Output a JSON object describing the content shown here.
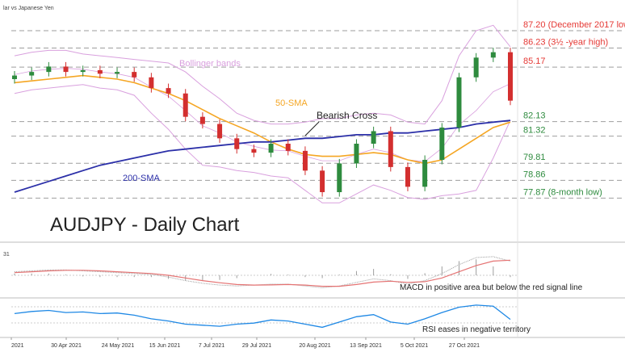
{
  "chart_data": {
    "type": "line",
    "header": "lar vs Japanese Yen",
    "title": "AUDJPY - Daily Chart",
    "main": {
      "ylim": [
        77.3,
        88.1
      ],
      "x": [
        "2021-04-13",
        "2021-04-20",
        "2021-04-27",
        "2021-05-04",
        "2021-05-11",
        "2021-05-18",
        "2021-05-25",
        "2021-06-01",
        "2021-06-08",
        "2021-06-15",
        "2021-06-22",
        "2021-06-29",
        "2021-07-06",
        "2021-07-13",
        "2021-07-20",
        "2021-07-27",
        "2021-08-03",
        "2021-08-10",
        "2021-08-17",
        "2021-08-24",
        "2021-08-31",
        "2021-09-07",
        "2021-09-14",
        "2021-09-21",
        "2021-09-28",
        "2021-10-05",
        "2021-10-12",
        "2021-10-19",
        "2021-10-26",
        "2021-11-02"
      ],
      "close": [
        84.7,
        84.9,
        85.2,
        84.9,
        85.0,
        84.8,
        84.9,
        84.6,
        84.0,
        83.7,
        82.4,
        82.0,
        81.2,
        80.6,
        80.4,
        80.9,
        80.5,
        79.4,
        78.2,
        79.8,
        80.9,
        81.6,
        79.6,
        78.5,
        80.0,
        81.8,
        84.6,
        85.7,
        86.0,
        83.3
      ],
      "sma50": [
        84.3,
        84.4,
        84.5,
        84.6,
        84.7,
        84.6,
        84.5,
        84.3,
        84.0,
        83.7,
        83.3,
        82.8,
        82.3,
        81.9,
        81.5,
        81.0,
        80.6,
        80.3,
        80.2,
        80.2,
        80.3,
        80.4,
        80.3,
        80.0,
        79.8,
        80.0,
        80.6,
        81.2,
        81.8,
        82.1
      ],
      "sma200": [
        78.2,
        78.5,
        78.8,
        79.1,
        79.4,
        79.7,
        79.9,
        80.1,
        80.3,
        80.5,
        80.6,
        80.7,
        80.8,
        80.9,
        81.0,
        81.0,
        81.1,
        81.2,
        81.2,
        81.3,
        81.4,
        81.4,
        81.5,
        81.5,
        81.6,
        81.7,
        81.8,
        82.0,
        82.1,
        82.2
      ],
      "bb_upper": [
        85.8,
        86.0,
        86.1,
        86.1,
        85.9,
        85.8,
        85.7,
        85.6,
        85.5,
        85.4,
        84.9,
        84.1,
        83.4,
        82.6,
        82.2,
        82.0,
        82.0,
        82.1,
        82.3,
        82.3,
        82.5,
        82.6,
        82.5,
        82.1,
        82.0,
        83.3,
        85.8,
        87.2,
        87.5,
        86.3
      ],
      "bb_lower": [
        83.7,
        83.9,
        84.0,
        84.1,
        84.2,
        84.0,
        83.9,
        83.6,
        82.6,
        81.7,
        80.6,
        79.7,
        79.6,
        79.4,
        79.3,
        79.1,
        79.0,
        78.3,
        77.6,
        77.6,
        78.1,
        78.6,
        78.3,
        77.9,
        77.8,
        78.0,
        78.1,
        78.3,
        80.1,
        82.2
      ],
      "levels": [
        {
          "value": 87.2,
          "label": "87.20 (December 2017 low)",
          "color": "#e53935"
        },
        {
          "value": 86.23,
          "label": "86.23 (3½ -year high)",
          "color": "#e53935"
        },
        {
          "value": 85.17,
          "label": "85.17",
          "color": "#e53935"
        },
        {
          "value": 82.13,
          "label": "82.13",
          "color": "#2e8b3e"
        },
        {
          "value": 81.32,
          "label": "81.32",
          "color": "#2e8b3e"
        },
        {
          "value": 79.81,
          "label": "79.81",
          "color": "#2e8b3e"
        },
        {
          "value": 78.86,
          "label": "78.86",
          "color": "#2e8b3e"
        },
        {
          "value": 77.87,
          "label": "77.87 (8-month low)",
          "color": "#2e8b3e"
        }
      ],
      "annotations": {
        "bollinger": "Bollinger bands",
        "sma50": "50-SMA",
        "cross": "Bearish Cross",
        "sma200": "200-SMA"
      }
    },
    "macd": {
      "axis_label": "31",
      "macd": [
        0.2,
        0.25,
        0.3,
        0.3,
        0.25,
        0.2,
        0.15,
        0.1,
        0.05,
        -0.1,
        -0.3,
        -0.45,
        -0.55,
        -0.6,
        -0.55,
        -0.5,
        -0.5,
        -0.6,
        -0.7,
        -0.6,
        -0.4,
        -0.2,
        -0.3,
        -0.5,
        -0.3,
        0.1,
        0.6,
        1.0,
        1.05,
        0.8
      ],
      "signal": [
        0.15,
        0.2,
        0.25,
        0.28,
        0.28,
        0.25,
        0.2,
        0.15,
        0.1,
        0.0,
        -0.15,
        -0.3,
        -0.42,
        -0.52,
        -0.55,
        -0.54,
        -0.52,
        -0.55,
        -0.62,
        -0.62,
        -0.52,
        -0.38,
        -0.33,
        -0.4,
        -0.36,
        -0.15,
        0.2,
        0.55,
        0.8,
        0.85
      ],
      "note": "MACD in positive area but below the red signal line",
      "colors": {
        "signal": "#e57373",
        "histogram": "#9e9e9e"
      }
    },
    "rsi": {
      "values": [
        58,
        62,
        64,
        60,
        61,
        58,
        59,
        55,
        48,
        44,
        38,
        36,
        34,
        38,
        40,
        46,
        44,
        38,
        32,
        42,
        52,
        56,
        42,
        38,
        48,
        60,
        70,
        74,
        72,
        47
      ],
      "note": "RSI eases in negative territory",
      "color": "#1e88e5"
    },
    "x_ticks": [
      "2021",
      "30 Apr 2021",
      "24 May 2021",
      "15 Jun 2021",
      "7 Jul 2021",
      "29 Jul 2021",
      "20 Aug 2021",
      "13 Sep 2021",
      "5 Oct 2021",
      "27 Oct 2021"
    ],
    "colors": {
      "bull": "#2e8b3e",
      "bear": "#d32f2f",
      "sma50": "#f5a623",
      "sma200": "#2b2fa8",
      "bollinger": "#d9a0de"
    }
  }
}
